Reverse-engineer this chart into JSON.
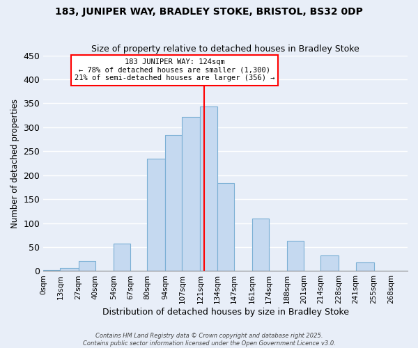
{
  "title1": "183, JUNIPER WAY, BRADLEY STOKE, BRISTOL, BS32 0DP",
  "title2": "Size of property relative to detached houses in Bradley Stoke",
  "xlabel": "Distribution of detached houses by size in Bradley Stoke",
  "ylabel": "Number of detached properties",
  "bin_edges": [
    0,
    13,
    27,
    40,
    54,
    67,
    80,
    94,
    107,
    121,
    134,
    147,
    161,
    174,
    188,
    201,
    214,
    228,
    241,
    255,
    268,
    281
  ],
  "bin_labels": [
    "0sqm",
    "13sqm",
    "27sqm",
    "40sqm",
    "54sqm",
    "67sqm",
    "80sqm",
    "94sqm",
    "107sqm",
    "121sqm",
    "134sqm",
    "147sqm",
    "161sqm",
    "174sqm",
    "188sqm",
    "201sqm",
    "214sqm",
    "228sqm",
    "241sqm",
    "255sqm",
    "268sqm"
  ],
  "bar_heights": [
    2,
    7,
    21,
    0,
    57,
    0,
    234,
    284,
    322,
    344,
    184,
    0,
    110,
    0,
    63,
    0,
    32,
    0,
    18,
    0,
    0
  ],
  "bar_color": "#c5d9f0",
  "bar_edge_color": "#7aafd4",
  "vline_x": 124,
  "vline_color": "red",
  "ylim": [
    0,
    450
  ],
  "yticks": [
    0,
    50,
    100,
    150,
    200,
    250,
    300,
    350,
    400,
    450
  ],
  "annotation_title": "183 JUNIPER WAY: 124sqm",
  "annotation_line1": "← 78% of detached houses are smaller (1,300)",
  "annotation_line2": "21% of semi-detached houses are larger (356) →",
  "annotation_box_color": "white",
  "annotation_box_edge": "red",
  "footer1": "Contains HM Land Registry data © Crown copyright and database right 2025.",
  "footer2": "Contains public sector information licensed under the Open Government Licence v3.0.",
  "bg_color": "#e8eef8",
  "plot_bg_color": "#e8eef8",
  "grid_color": "white"
}
